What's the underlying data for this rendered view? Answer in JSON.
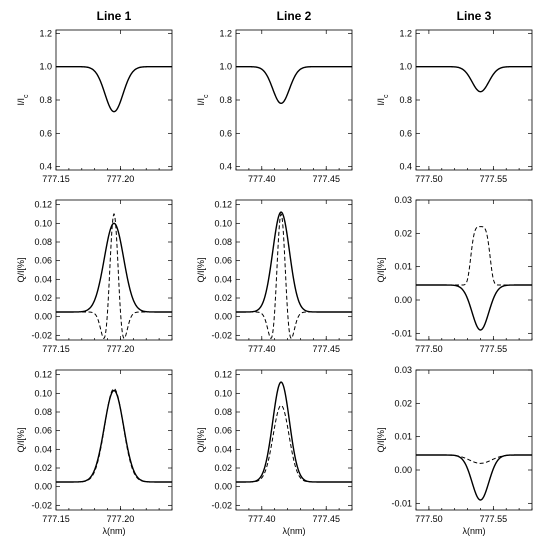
{
  "chart_data": {
    "type": "line",
    "column_titles": [
      "Line 1",
      "Line 2",
      "Line 3"
    ],
    "x_axis_label": "λ(nm)",
    "row_ylabels": [
      "I/I_c",
      "Q/I[%]",
      "Q/I[%]"
    ],
    "columns": [
      {
        "title": "Line 1",
        "xlim": [
          777.15,
          777.24
        ],
        "xticks": [
          "777.15",
          "777.20"
        ],
        "xtick_values": [
          777.15,
          777.2
        ],
        "center": 777.195
      },
      {
        "title": "Line 2",
        "xlim": [
          777.38,
          777.47
        ],
        "xticks": [
          "777.40",
          "777.45"
        ],
        "xtick_values": [
          777.4,
          777.45
        ],
        "center": 777.415
      },
      {
        "title": "Line 3",
        "xlim": [
          777.49,
          777.58
        ],
        "xticks": [
          "777.50",
          "777.55"
        ],
        "xtick_values": [
          777.5,
          777.55
        ],
        "center": 777.54
      }
    ],
    "panels": [
      {
        "row": 0,
        "col": 0,
        "ylabel": "I/I_c",
        "ylim": [
          0.38,
          1.22
        ],
        "yticks": [
          "0.4",
          "0.6",
          "0.8",
          "1.0",
          "1.2"
        ],
        "ytick_values": [
          0.4,
          0.6,
          0.8,
          1.0,
          1.2
        ],
        "series": [
          {
            "style": "solid",
            "kind": "absorption",
            "baseline": 1.0,
            "amplitude": -0.27,
            "width": 0.007
          }
        ]
      },
      {
        "row": 0,
        "col": 1,
        "ylabel": "I/I_c",
        "ylim": [
          0.38,
          1.22
        ],
        "yticks": [
          "0.4",
          "0.6",
          "0.8",
          "1.0",
          "1.2"
        ],
        "ytick_values": [
          0.4,
          0.6,
          0.8,
          1.0,
          1.2
        ],
        "series": [
          {
            "style": "solid",
            "kind": "absorption",
            "baseline": 1.0,
            "amplitude": -0.22,
            "width": 0.0065
          }
        ]
      },
      {
        "row": 0,
        "col": 2,
        "ylabel": "I/I_c",
        "ylim": [
          0.38,
          1.22
        ],
        "yticks": [
          "0.4",
          "0.6",
          "0.8",
          "1.0",
          "1.2"
        ],
        "ytick_values": [
          0.4,
          0.6,
          0.8,
          1.0,
          1.2
        ],
        "series": [
          {
            "style": "solid",
            "kind": "absorption",
            "baseline": 1.0,
            "amplitude": -0.15,
            "width": 0.0065
          }
        ]
      },
      {
        "row": 1,
        "col": 0,
        "ylabel": "Q/I[%]",
        "ylim": [
          -0.025,
          0.125
        ],
        "yticks": [
          "-0.02",
          "0.00",
          "0.02",
          "0.04",
          "0.06",
          "0.08",
          "0.10",
          "0.12"
        ],
        "ytick_values": [
          -0.02,
          0.0,
          0.02,
          0.04,
          0.06,
          0.08,
          0.1,
          0.12
        ],
        "series": [
          {
            "style": "solid",
            "kind": "peak",
            "baseline": 0.005,
            "amplitude": 0.095,
            "width": 0.0075
          },
          {
            "style": "dashed",
            "kind": "wiggle",
            "baseline": 0.005,
            "amplitude": 0.105,
            "width": 0.0045
          }
        ]
      },
      {
        "row": 1,
        "col": 1,
        "ylabel": "Q/I[%]",
        "ylim": [
          -0.025,
          0.125
        ],
        "yticks": [
          "-0.02",
          "0.00",
          "0.02",
          "0.04",
          "0.06",
          "0.08",
          "0.10",
          "0.12"
        ],
        "ytick_values": [
          -0.02,
          0.0,
          0.02,
          0.04,
          0.06,
          0.08,
          0.1,
          0.12
        ],
        "series": [
          {
            "style": "solid",
            "kind": "peak",
            "baseline": 0.005,
            "amplitude": 0.107,
            "width": 0.0065
          },
          {
            "style": "dashed",
            "kind": "wiggle",
            "baseline": 0.005,
            "amplitude": 0.105,
            "width": 0.0045
          }
        ]
      },
      {
        "row": 1,
        "col": 2,
        "ylabel": "Q/I[%]",
        "ylim": [
          -0.012,
          0.03
        ],
        "yticks": [
          "-0.01",
          "0.00",
          "0.01",
          "0.02",
          "0.03"
        ],
        "ytick_values": [
          -0.01,
          0.0,
          0.01,
          0.02,
          0.03
        ],
        "series": [
          {
            "style": "solid",
            "kind": "absorption",
            "baseline": 0.0045,
            "amplitude": -0.0135,
            "width": 0.0065
          },
          {
            "style": "dashed",
            "kind": "flattop",
            "baseline": 0.0045,
            "amplitude": 0.0175,
            "width": 0.0065
          }
        ]
      },
      {
        "row": 2,
        "col": 0,
        "ylabel": "Q/I[%]",
        "ylim": [
          -0.025,
          0.125
        ],
        "yticks": [
          "-0.02",
          "0.00",
          "0.02",
          "0.04",
          "0.06",
          "0.08",
          "0.10",
          "0.12"
        ],
        "ytick_values": [
          -0.02,
          0.0,
          0.02,
          0.04,
          0.06,
          0.08,
          0.1,
          0.12
        ],
        "series": [
          {
            "style": "solid",
            "kind": "peak",
            "baseline": 0.005,
            "amplitude": 0.098,
            "width": 0.0075
          },
          {
            "style": "dashed",
            "kind": "peak",
            "baseline": 0.005,
            "amplitude": 0.1,
            "width": 0.0072
          }
        ]
      },
      {
        "row": 2,
        "col": 1,
        "ylabel": "Q/I[%]",
        "ylim": [
          -0.025,
          0.125
        ],
        "yticks": [
          "-0.02",
          "0.00",
          "0.02",
          "0.04",
          "0.06",
          "0.08",
          "0.10",
          "0.12"
        ],
        "ytick_values": [
          -0.02,
          0.0,
          0.02,
          0.04,
          0.06,
          0.08,
          0.1,
          0.12
        ],
        "series": [
          {
            "style": "solid",
            "kind": "peak",
            "baseline": 0.005,
            "amplitude": 0.107,
            "width": 0.0065
          },
          {
            "style": "dashed",
            "kind": "peak",
            "baseline": 0.005,
            "amplitude": 0.082,
            "width": 0.0062
          }
        ]
      },
      {
        "row": 2,
        "col": 2,
        "ylabel": "Q/I[%]",
        "ylim": [
          -0.012,
          0.03
        ],
        "yticks": [
          "-0.01",
          "0.00",
          "0.01",
          "0.02",
          "0.03"
        ],
        "ytick_values": [
          -0.01,
          0.0,
          0.01,
          0.02,
          0.03
        ],
        "series": [
          {
            "style": "solid",
            "kind": "absorption",
            "baseline": 0.0045,
            "amplitude": -0.0135,
            "width": 0.0065
          },
          {
            "style": "dashed",
            "kind": "absorption",
            "baseline": 0.0045,
            "amplitude": -0.0025,
            "width": 0.0085
          }
        ]
      }
    ]
  }
}
